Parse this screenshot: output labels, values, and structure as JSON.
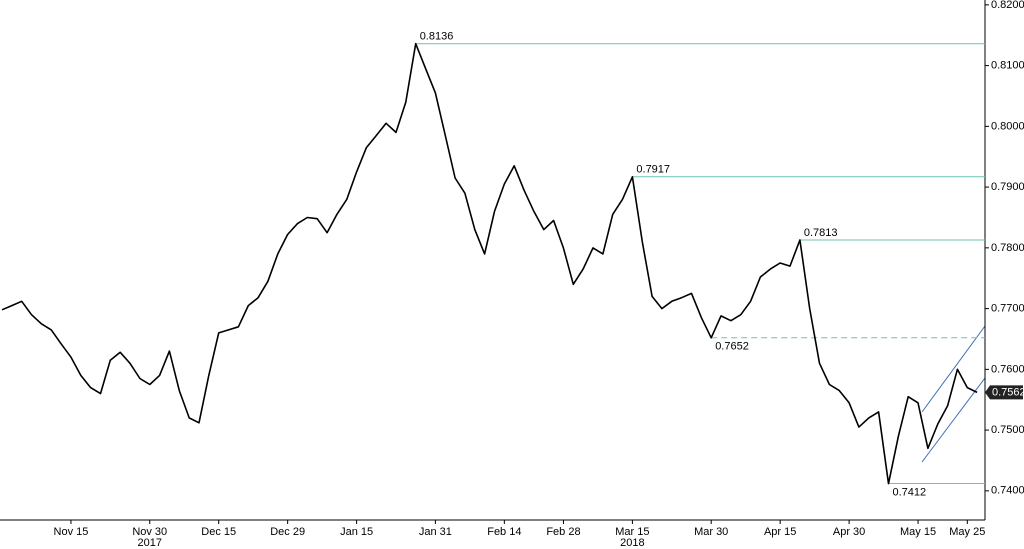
{
  "chart_data": {
    "type": "line",
    "color": "#000000",
    "categories": [
      null,
      null,
      null,
      null,
      null,
      null,
      null,
      "Nov 15",
      null,
      null,
      null,
      null,
      null,
      null,
      null,
      "Nov 30",
      null,
      null,
      null,
      null,
      null,
      null,
      "Dec 15",
      null,
      null,
      null,
      null,
      null,
      null,
      "Dec 29",
      null,
      null,
      null,
      null,
      null,
      null,
      "Jan 15",
      null,
      null,
      null,
      null,
      null,
      null,
      null,
      "Jan 31",
      null,
      null,
      null,
      null,
      null,
      null,
      "Feb 14",
      null,
      null,
      null,
      null,
      null,
      "Feb 28",
      null,
      null,
      null,
      null,
      null,
      null,
      "Mar 15",
      null,
      null,
      null,
      null,
      null,
      null,
      null,
      "Mar 30",
      null,
      null,
      null,
      null,
      null,
      null,
      "Apr 15",
      null,
      null,
      null,
      null,
      null,
      null,
      "Apr 30",
      null,
      null,
      null,
      null,
      null,
      null,
      "May 15",
      null,
      null,
      null,
      null,
      "May 25",
      null
    ],
    "year_labels": [
      null,
      null,
      null,
      null,
      null,
      null,
      null,
      null,
      null,
      null,
      null,
      null,
      null,
      null,
      null,
      "2017",
      null,
      null,
      null,
      null,
      null,
      null,
      null,
      null,
      null,
      null,
      null,
      null,
      null,
      null,
      null,
      null,
      null,
      null,
      null,
      null,
      null,
      null,
      null,
      null,
      null,
      null,
      null,
      null,
      null,
      null,
      null,
      null,
      null,
      null,
      null,
      null,
      null,
      null,
      null,
      null,
      null,
      null,
      null,
      null,
      null,
      null,
      null,
      null,
      "2018",
      null,
      null,
      null,
      null,
      null,
      null,
      null,
      null,
      null,
      null,
      null,
      null,
      null,
      null,
      null,
      null,
      null,
      null,
      null,
      null,
      null,
      null,
      null,
      null,
      null,
      null,
      null,
      null,
      null,
      null,
      null,
      null,
      null,
      null,
      null
    ],
    "values": [
      0.7698,
      0.7705,
      0.7712,
      0.769,
      0.7675,
      0.7665,
      0.7642,
      0.762,
      0.759,
      0.757,
      0.756,
      0.7615,
      0.7628,
      0.761,
      0.7585,
      0.7575,
      0.759,
      0.763,
      0.7565,
      0.752,
      0.7512,
      0.759,
      0.766,
      0.7665,
      0.767,
      0.7705,
      0.7718,
      0.7745,
      0.779,
      0.7822,
      0.784,
      0.785,
      0.7848,
      0.7825,
      0.7855,
      0.788,
      0.7925,
      0.7965,
      0.7985,
      0.8005,
      0.799,
      0.804,
      0.8136,
      0.8095,
      0.8055,
      0.7985,
      0.7915,
      0.789,
      0.783,
      0.779,
      0.786,
      0.7905,
      0.7935,
      0.7895,
      0.786,
      0.783,
      0.7845,
      0.78,
      0.774,
      0.7765,
      0.78,
      0.779,
      0.7855,
      0.788,
      0.7917,
      0.781,
      0.772,
      0.77,
      0.7712,
      0.7718,
      0.7725,
      0.7685,
      0.7652,
      0.7688,
      0.768,
      0.769,
      0.7712,
      0.7752,
      0.7765,
      0.7775,
      0.777,
      0.7813,
      0.77,
      0.761,
      0.7575,
      0.7565,
      0.7545,
      0.7505,
      0.752,
      0.753,
      0.7412,
      0.749,
      0.7555,
      0.7545,
      0.747,
      0.751,
      0.754,
      0.76,
      0.757,
      0.7562
    ],
    "ylim": [
      0.7352,
      0.8208
    ],
    "yticks": [
      {
        "value": 0.74,
        "label": "0.7400"
      },
      {
        "value": 0.75,
        "label": "0.7500"
      },
      {
        "value": 0.76,
        "label": "0.7600"
      },
      {
        "value": 0.77,
        "label": "0.7700"
      },
      {
        "value": 0.78,
        "label": "0.7800"
      },
      {
        "value": 0.79,
        "label": "0.7900"
      },
      {
        "value": 0.8,
        "label": "0.8000"
      },
      {
        "value": 0.81,
        "label": "0.8100"
      },
      {
        "value": 0.82,
        "label": "0.8200"
      }
    ],
    "levels": [
      {
        "value": 0.8136,
        "style": "solid",
        "label_pos": "above"
      },
      {
        "value": 0.7917,
        "style": "solid",
        "label_pos": "above"
      },
      {
        "value": 0.7813,
        "style": "solid",
        "label_pos": "above"
      },
      {
        "value": 0.7652,
        "style": "dashed",
        "label_pos": "below"
      },
      {
        "value": 0.7412,
        "style": "solid",
        "label_pos": "below"
      }
    ],
    "level_color": "#6cc3b3",
    "grid": false
  }
}
